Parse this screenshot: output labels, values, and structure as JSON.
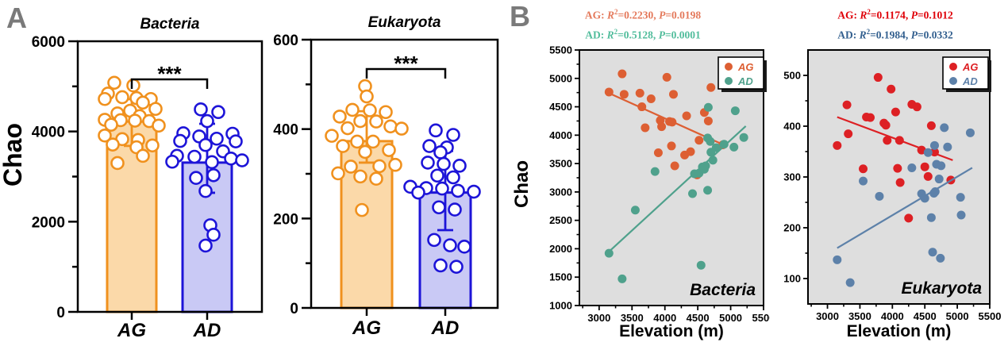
{
  "figure": {
    "panel_a_label": "A",
    "panel_b_label": "B",
    "colors": {
      "panel_letter": "#7a7a7a",
      "scatter_bg": "#dedede",
      "bar_ag_border": "#F0911E",
      "bar_ag_fill": "#FBD9A9",
      "bar_ad_border": "#1D14D8",
      "bar_ad_fill": "#C9C9F5",
      "b1_ag": "#DD5F33",
      "b1_ad": "#4FA18C",
      "b2_ag": "#DD2024",
      "b2_ad": "#5D81A9"
    }
  },
  "chart_data": [
    {
      "id": "bacteria_bar",
      "type": "bar",
      "title": "Bacteria",
      "ylabel": "Chao",
      "ylim": [
        0,
        6000
      ],
      "yticks_major": [
        0,
        2000,
        4000,
        6000
      ],
      "yticks_minor": [
        1000,
        3000,
        5000
      ],
      "categories": [
        "AG",
        "AD"
      ],
      "significance": "***",
      "series": [
        {
          "name": "AG",
          "mean": 4220,
          "err_lo": 3680,
          "err_hi": 4715,
          "border": "#F0911E",
          "fill": "#FBD9A9",
          "points": [
            [
              -22,
              5080
            ],
            [
              2,
              5020
            ],
            [
              -30,
              4840
            ],
            [
              -12,
              4760
            ],
            [
              6,
              4740
            ],
            [
              24,
              4720
            ],
            [
              -34,
              4720
            ],
            [
              14,
              4640
            ],
            [
              30,
              4500
            ],
            [
              -2,
              4460
            ],
            [
              -18,
              4400
            ],
            [
              10,
              4340
            ],
            [
              -34,
              4260
            ],
            [
              -14,
              4250
            ],
            [
              4,
              4240
            ],
            [
              22,
              4230
            ],
            [
              -26,
              4150
            ],
            [
              34,
              4130
            ],
            [
              -34,
              3910
            ],
            [
              -12,
              3830
            ],
            [
              8,
              3810
            ],
            [
              -24,
              3710
            ],
            [
              26,
              3690
            ],
            [
              6,
              3650
            ],
            [
              14,
              3460
            ],
            [
              -18,
              3300
            ]
          ]
        },
        {
          "name": "AD",
          "mean": 3310,
          "err_lo": 2640,
          "err_hi": 4170,
          "border": "#1D14D8",
          "fill": "#C9C9F5",
          "points": [
            [
              -8,
              4490
            ],
            [
              14,
              4430
            ],
            [
              0,
              4230
            ],
            [
              -30,
              3960
            ],
            [
              32,
              3950
            ],
            [
              -10,
              3890
            ],
            [
              12,
              3840
            ],
            [
              -34,
              3790
            ],
            [
              36,
              3780
            ],
            [
              -2,
              3700
            ],
            [
              20,
              3560
            ],
            [
              -38,
              3460
            ],
            [
              -16,
              3440
            ],
            [
              30,
              3400
            ],
            [
              44,
              3360
            ],
            [
              -44,
              3330
            ],
            [
              6,
              3320
            ],
            [
              8,
              3030
            ],
            [
              -14,
              2970
            ],
            [
              -2,
              2680
            ],
            [
              4,
              1920
            ],
            [
              8,
              1710
            ],
            [
              -2,
              1470
            ]
          ]
        }
      ]
    },
    {
      "id": "eukaryota_bar",
      "type": "bar",
      "title": "Eukaryota",
      "ylabel": "",
      "ylim": [
        0,
        600
      ],
      "yticks_major": [
        0,
        200,
        400,
        600
      ],
      "yticks_minor": [
        100,
        300,
        500
      ],
      "categories": [
        "AG",
        "AD"
      ],
      "significance": "***",
      "series": [
        {
          "name": "AG",
          "mean": 373,
          "err_lo": 325,
          "err_hi": 440,
          "border": "#F0911E",
          "fill": "#FBD9A9",
          "points": [
            [
              -2,
              496
            ],
            [
              0,
              473
            ],
            [
              -18,
              443
            ],
            [
              4,
              442
            ],
            [
              24,
              438
            ],
            [
              -34,
              428
            ],
            [
              -8,
              418
            ],
            [
              12,
              417
            ],
            [
              30,
              406
            ],
            [
              -24,
              402
            ],
            [
              44,
              401
            ],
            [
              -44,
              385
            ],
            [
              -12,
              372
            ],
            [
              8,
              372
            ],
            [
              -30,
              362
            ],
            [
              28,
              353
            ],
            [
              -2,
              349
            ],
            [
              36,
              320
            ],
            [
              16,
              317
            ],
            [
              -20,
              316
            ],
            [
              -36,
              301
            ],
            [
              -8,
              294
            ],
            [
              12,
              289
            ],
            [
              -6,
              219
            ]
          ]
        },
        {
          "name": "AD",
          "mean": 258,
          "err_lo": 174,
          "err_hi": 351,
          "border": "#1D14D8",
          "fill": "#C9C9F5",
          "points": [
            [
              -12,
              397
            ],
            [
              10,
              387
            ],
            [
              -20,
              362
            ],
            [
              2,
              359
            ],
            [
              -6,
              348
            ],
            [
              -22,
              325
            ],
            [
              -2,
              322
            ],
            [
              18,
              318
            ],
            [
              -10,
              296
            ],
            [
              10,
              292
            ],
            [
              -44,
              271
            ],
            [
              -24,
              268
            ],
            [
              -4,
              267
            ],
            [
              16,
              262
            ],
            [
              36,
              260
            ],
            [
              -34,
              258
            ],
            [
              -8,
              225
            ],
            [
              12,
              220
            ],
            [
              -14,
              152
            ],
            [
              6,
              140
            ],
            [
              24,
              137
            ],
            [
              -6,
              95
            ],
            [
              14,
              92
            ]
          ]
        }
      ]
    },
    {
      "id": "bacteria_scatter",
      "type": "scatter",
      "inner_label": "Bacteria",
      "xlabel": "Elevation (m)",
      "ylabel": "Chao",
      "xlim": [
        2700,
        5500
      ],
      "ylim": [
        1000,
        5500
      ],
      "xticks": [
        3000,
        3500,
        4000,
        4500,
        5000,
        5500
      ],
      "xticks_minor": [
        2750,
        3250,
        3750,
        4250,
        4750,
        5250
      ],
      "yticks": [
        1000,
        1500,
        2000,
        2500,
        3000,
        3500,
        4000,
        4500,
        5000,
        5500
      ],
      "yticks_minor": [
        1250,
        1750,
        2250,
        2750,
        3250,
        3750,
        4250,
        4750,
        5250
      ],
      "plot_bg": "#dedede",
      "legend": [
        "AG",
        "AD"
      ],
      "stats": [
        {
          "group": "AG",
          "r2": "0.2230",
          "p": "0.0198",
          "color": "#E4795B"
        },
        {
          "group": "AD",
          "r2": "0.5128",
          "p": "0.0001",
          "color": "#52BD9C"
        }
      ],
      "series": [
        {
          "name": "AG",
          "color": "#DD5F33",
          "line": [
            [
              3150,
              4740
            ],
            [
              4930,
              3810
            ]
          ],
          "points": [
            [
              3150,
              4760
            ],
            [
              3350,
              5080
            ],
            [
              3380,
              4720
            ],
            [
              3620,
              4740
            ],
            [
              3650,
              4500
            ],
            [
              3700,
              4130
            ],
            [
              3790,
              4640
            ],
            [
              3900,
              3690
            ],
            [
              3930,
              4260
            ],
            [
              3950,
              4150
            ],
            [
              4030,
              5020
            ],
            [
              4070,
              4240
            ],
            [
              4100,
              3810
            ],
            [
              4110,
              4230
            ],
            [
              4130,
              4720
            ],
            [
              4150,
              3460
            ],
            [
              4300,
              3650
            ],
            [
              4330,
              4340
            ],
            [
              4390,
              3710
            ],
            [
              4490,
              3300
            ],
            [
              4520,
              3910
            ],
            [
              4600,
              4400
            ],
            [
              4660,
              4250
            ],
            [
              4700,
              4840
            ],
            [
              4880,
              3830
            ]
          ]
        },
        {
          "name": "AD",
          "color": "#4FA18C",
          "line": [
            [
              3150,
              1950
            ],
            [
              5230,
              4160
            ]
          ],
          "points": [
            [
              3150,
              1920
            ],
            [
              3350,
              1470
            ],
            [
              3550,
              2680
            ],
            [
              3850,
              3360
            ],
            [
              4420,
              2970
            ],
            [
              4450,
              3320
            ],
            [
              4520,
              3330
            ],
            [
              4550,
              1710
            ],
            [
              4570,
              3440
            ],
            [
              4600,
              3400
            ],
            [
              4620,
              3460
            ],
            [
              4650,
              3030
            ],
            [
              4650,
              3950
            ],
            [
              4660,
              4490
            ],
            [
              4690,
              3890
            ],
            [
              4700,
              3700
            ],
            [
              4730,
              3560
            ],
            [
              4780,
              3780
            ],
            [
              4900,
              3840
            ],
            [
              5050,
              3790
            ],
            [
              5070,
              4430
            ],
            [
              5200,
              3960
            ]
          ]
        }
      ]
    },
    {
      "id": "eukaryota_scatter",
      "type": "scatter",
      "inner_label": "Eukaryota",
      "xlabel": "Elevation (m)",
      "ylabel": "",
      "xlim": [
        2700,
        5500
      ],
      "ylim": [
        50,
        550
      ],
      "xticks": [
        3000,
        3500,
        4000,
        4500,
        5000,
        5500
      ],
      "xticks_minor": [
        2750,
        3250,
        3750,
        4250,
        4750,
        5250
      ],
      "yticks": [
        100,
        200,
        300,
        400,
        500
      ],
      "yticks_minor": [
        150,
        250,
        350,
        450
      ],
      "plot_bg": "#dedede",
      "legend": [
        "AG",
        "AD"
      ],
      "stats": [
        {
          "group": "AG",
          "r2": "0.1174",
          "p": "0.1012",
          "color": "#DF0008"
        },
        {
          "group": "AD",
          "r2": "0.1984",
          "p": "0.0332",
          "color": "#33608F"
        }
      ],
      "series": [
        {
          "name": "AG",
          "color": "#DD2024",
          "line": [
            [
              3150,
              418
            ],
            [
              4930,
              333
            ]
          ],
          "points": [
            [
              3150,
              362
            ],
            [
              3300,
              442
            ],
            [
              3320,
              385
            ],
            [
              3550,
              316
            ],
            [
              3600,
              418
            ],
            [
              3660,
              417
            ],
            [
              3780,
              496
            ],
            [
              3870,
              406
            ],
            [
              3900,
              402
            ],
            [
              3920,
              372
            ],
            [
              3980,
              473
            ],
            [
              4050,
              428
            ],
            [
              4080,
              317
            ],
            [
              4110,
              372
            ],
            [
              4120,
              289
            ],
            [
              4250,
              219
            ],
            [
              4300,
              443
            ],
            [
              4380,
              438
            ],
            [
              4450,
              353
            ],
            [
              4500,
              320
            ],
            [
              4550,
              301
            ],
            [
              4600,
              401
            ],
            [
              4650,
              349
            ],
            [
              4900,
              294
            ]
          ]
        },
        {
          "name": "AD",
          "color": "#5D81A9",
          "line": [
            [
              3150,
              160
            ],
            [
              5230,
              318
            ]
          ],
          "points": [
            [
              3150,
              137
            ],
            [
              3350,
              92
            ],
            [
              3550,
              292
            ],
            [
              3800,
              262
            ],
            [
              4300,
              318
            ],
            [
              4450,
              267
            ],
            [
              4500,
              258
            ],
            [
              4550,
              348
            ],
            [
              4600,
              220
            ],
            [
              4620,
              152
            ],
            [
              4640,
              268
            ],
            [
              4660,
              271
            ],
            [
              4650,
              362
            ],
            [
              4680,
              325
            ],
            [
              4720,
              296
            ],
            [
              4740,
              140
            ],
            [
              4750,
              322
            ],
            [
              4800,
              397
            ],
            [
              4850,
              359
            ],
            [
              5050,
              260
            ],
            [
              5060,
              225
            ],
            [
              5200,
              387
            ]
          ]
        }
      ]
    }
  ]
}
